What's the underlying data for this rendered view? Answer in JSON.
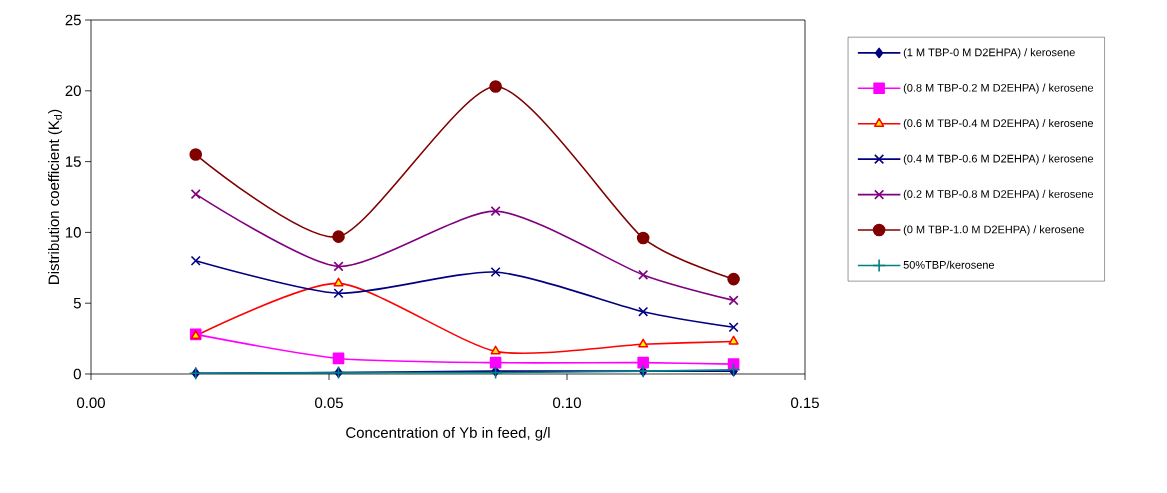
{
  "chart_data": {
    "type": "line",
    "xlabel": "Concentration of Yb in feed, g/l",
    "ylabel": "Distribution coefficient (K$_{d}$)",
    "x": [
      0.022,
      0.052,
      0.085,
      0.116,
      0.135
    ],
    "xlim": [
      0,
      0.15
    ],
    "xticks": [
      {
        "value": 0,
        "label": "0.00"
      },
      {
        "value": 0.05,
        "label": "0.05"
      },
      {
        "value": 0.1,
        "label": "0.10"
      },
      {
        "value": 0.15,
        "label": "0.15"
      }
    ],
    "ylim": [
      0,
      25
    ],
    "yticks": [
      0,
      5,
      10,
      15,
      20,
      25
    ],
    "grid": false,
    "legend": "right",
    "line_style": "solid",
    "series": [
      {
        "name": "(1 M TBP-0 M D2EHPA) / kerosene",
        "color": "#000080",
        "marker": "diamond",
        "values": [
          0.05,
          0.1,
          0.2,
          0.2,
          0.2
        ]
      },
      {
        "name": "(0.8 M TBP-0.2 M D2EHPA) / kerosene",
        "color": "#ff00ff",
        "marker": "square",
        "values": [
          2.8,
          1.1,
          0.8,
          0.8,
          0.7
        ]
      },
      {
        "name": "(0.6 M TBP-0.4 M D2EHPA) / kerosene",
        "color": "#ff0000",
        "marker": "triangle",
        "values": [
          2.7,
          6.4,
          1.6,
          2.1,
          2.3
        ]
      },
      {
        "name": "(0.4 M TBP-0.6 M D2EHPA) / kerosene",
        "color": "#000080",
        "marker": "cross",
        "values": [
          8.0,
          5.7,
          7.2,
          4.4,
          3.3
        ]
      },
      {
        "name": "(0.2 M TBP-0.8 M D2EHPA) / kerosene",
        "color": "#800080",
        "marker": "cross",
        "values": [
          12.7,
          7.6,
          11.5,
          7.0,
          5.2
        ]
      },
      {
        "name": "(0 M TBP-1.0 M D2EHPA) / kerosene",
        "color": "#800000",
        "marker": "circle",
        "values": [
          15.5,
          9.7,
          20.3,
          9.6,
          6.7
        ]
      },
      {
        "name": "50%TBP/kerosene",
        "color": "#008080",
        "marker": "plus",
        "values": [
          0.05,
          0.1,
          0.1,
          0.2,
          0.3
        ]
      }
    ]
  }
}
